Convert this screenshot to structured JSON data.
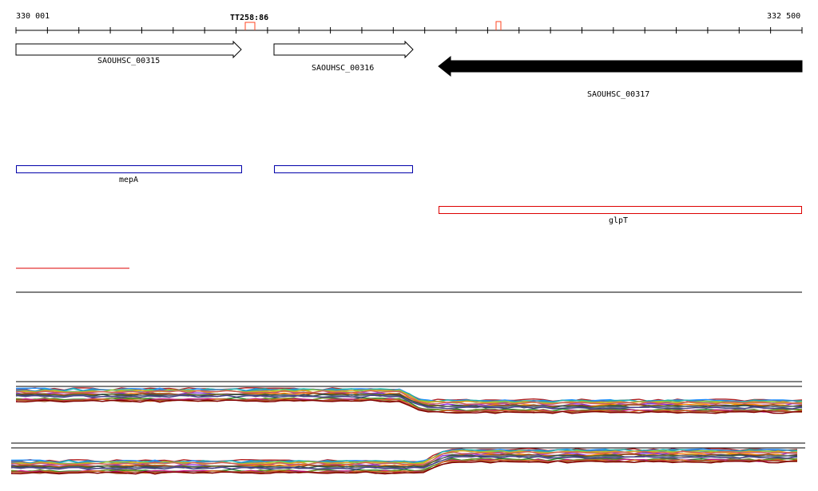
{
  "ruler": {
    "start_label": "330 001",
    "end_label": "332 500",
    "terminator_label": "TT258:86",
    "range": [
      330001,
      332500
    ]
  },
  "genes": [
    {
      "id": "SAOUHSC_00315",
      "strand": "+",
      "style": "outline",
      "start": 330001,
      "end": 330720
    },
    {
      "id": "SAOUHSC_00316",
      "strand": "+",
      "style": "outline",
      "start": 330825,
      "end": 331367
    },
    {
      "id": "SAOUHSC_00317",
      "strand": "-",
      "style": "filled",
      "start": 331450,
      "end": 332500
    }
  ],
  "annotations": [
    {
      "label": "mepA",
      "start": 330001,
      "end": 330720,
      "color": "#0000aa"
    },
    {
      "label": "",
      "start": 330825,
      "end": 331367,
      "color": "#0000aa"
    },
    {
      "label": "glpT",
      "start": 331450,
      "end": 332500,
      "color": "#dd0000"
    }
  ],
  "colors": {
    "axis": "#000000",
    "gene_fill": "#000000",
    "terminator": "#ff4422",
    "short_feature": "#dd0000",
    "panel_border": "#000000"
  },
  "expression_tracks": {
    "series_colors": [
      "#8a2be2",
      "#b22222",
      "#228b22",
      "#ff8c00",
      "#1e90ff",
      "#6b8e23",
      "#8b4513",
      "#20b2aa",
      "#c71585",
      "#556b2f",
      "#4682b4",
      "#d2691e",
      "#2f4f4f",
      "#9acd32",
      "#a0522d",
      "#708090",
      "#daa520",
      "#800000",
      "#483d8b",
      "#cd5c5c"
    ]
  }
}
